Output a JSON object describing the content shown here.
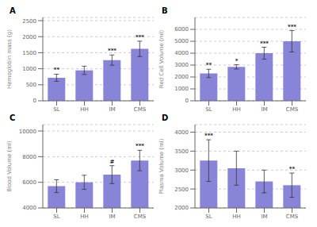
{
  "chart_data": [
    {
      "type": "bar",
      "title": "A",
      "ylabel": "Hemoglobin mass (g)",
      "categories": [
        "SL",
        "HH",
        "IM",
        "CMS"
      ],
      "values": [
        720,
        950,
        1270,
        1620
      ],
      "errors": [
        110,
        130,
        160,
        240
      ],
      "ylim": [
        0,
        2600
      ],
      "yticks": [
        0,
        500,
        1000,
        1500,
        2000,
        2500
      ],
      "grid": true,
      "annotations": [
        {
          "category": "SL",
          "text": "**"
        },
        {
          "category": "IM",
          "text": "***"
        },
        {
          "category": "CMS",
          "text": "***"
        }
      ]
    },
    {
      "type": "bar",
      "title": "B",
      "ylabel": "Red Cell Volume (ml)",
      "categories": [
        "SL",
        "HH",
        "IM",
        "CMS"
      ],
      "values": [
        2300,
        2850,
        4000,
        5000
      ],
      "errors": [
        350,
        180,
        500,
        900
      ],
      "ylim": [
        0,
        7000
      ],
      "yticks": [
        0,
        1000,
        2000,
        3000,
        4000,
        5000,
        6000
      ],
      "grid": true,
      "annotations": [
        {
          "category": "SL",
          "text": "**"
        },
        {
          "category": "HH",
          "text": "*"
        },
        {
          "category": "IM",
          "text": "***"
        },
        {
          "category": "CMS",
          "text": "***"
        }
      ]
    },
    {
      "type": "bar",
      "title": "C",
      "ylabel": "Blood Volume (ml)",
      "categories": [
        "SL",
        "HH",
        "IM",
        "CMS"
      ],
      "values": [
        5700,
        6000,
        6600,
        7700
      ],
      "errors": [
        500,
        550,
        700,
        800
      ],
      "ylim": [
        4000,
        10500
      ],
      "yticks": [
        4000,
        6000,
        8000,
        10000
      ],
      "grid": true,
      "annotations": [
        {
          "category": "IM",
          "text": "#"
        },
        {
          "category": "CMS",
          "text": "***"
        }
      ]
    },
    {
      "type": "bar",
      "title": "D",
      "ylabel": "Plasma Volume (ml)",
      "categories": [
        "SL",
        "HH",
        "IM",
        "CMS"
      ],
      "values": [
        3250,
        3050,
        2700,
        2600
      ],
      "errors": [
        550,
        450,
        300,
        320
      ],
      "ylim": [
        2000,
        4200
      ],
      "yticks": [
        2000,
        2500,
        3000,
        3500,
        4000
      ],
      "grid": true,
      "annotations": [
        {
          "category": "SL",
          "text": "***"
        },
        {
          "category": "CMS",
          "text": "**"
        }
      ]
    }
  ]
}
